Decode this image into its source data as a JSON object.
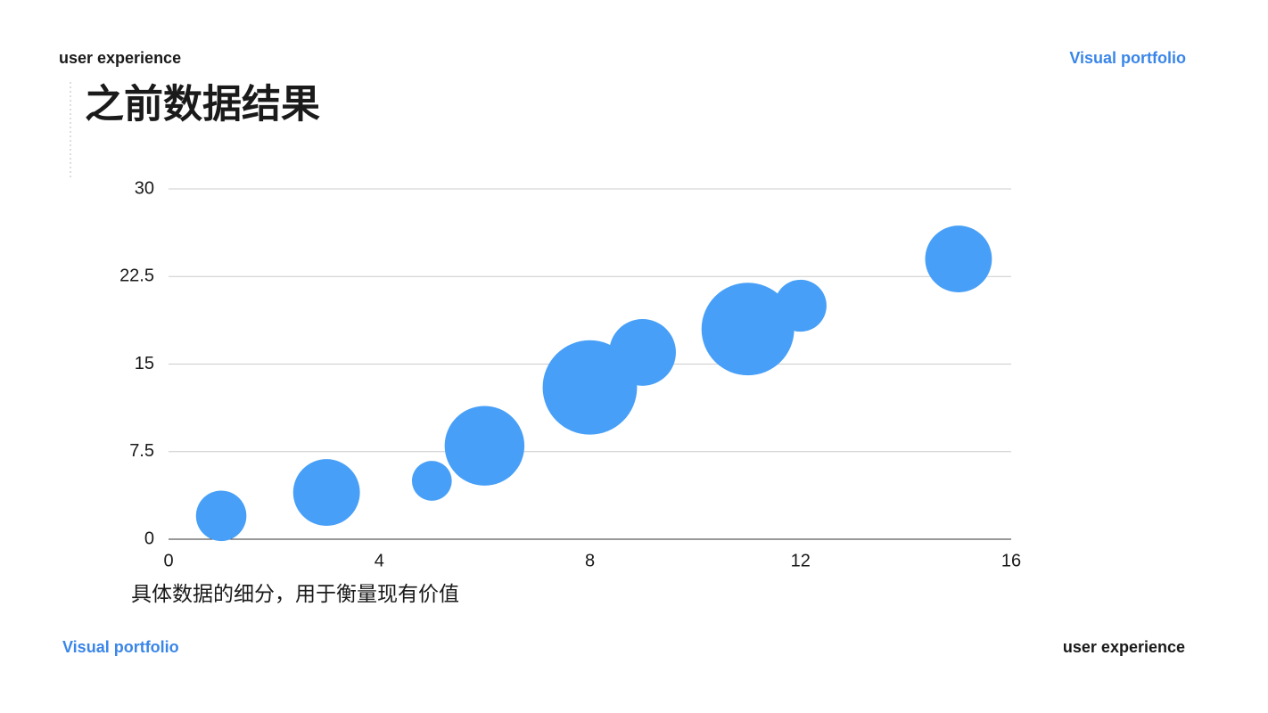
{
  "header": {
    "left": "user experience",
    "right": "Visual portfolio"
  },
  "footer": {
    "left": "Visual portfolio",
    "right": "user experience"
  },
  "chart_data": {
    "type": "bubble",
    "title": "之前数据结果",
    "caption": "具体数据的细分，用于衡量现有价值",
    "x": [
      1,
      3,
      5,
      6,
      8,
      9,
      11,
      12,
      15
    ],
    "values": [
      2,
      4,
      5,
      8,
      13,
      16,
      18,
      20,
      24
    ],
    "sizes": [
      8,
      14,
      5,
      20,
      28,
      14,
      27,
      8.5,
      14
    ],
    "color": "#479ff7",
    "xlim": [
      0,
      16
    ],
    "xticks": [
      0,
      4,
      8,
      12,
      16
    ],
    "ylim": [
      0,
      30
    ],
    "yticks": [
      0,
      7.5,
      15,
      22.5,
      30
    ],
    "grid": true
  }
}
